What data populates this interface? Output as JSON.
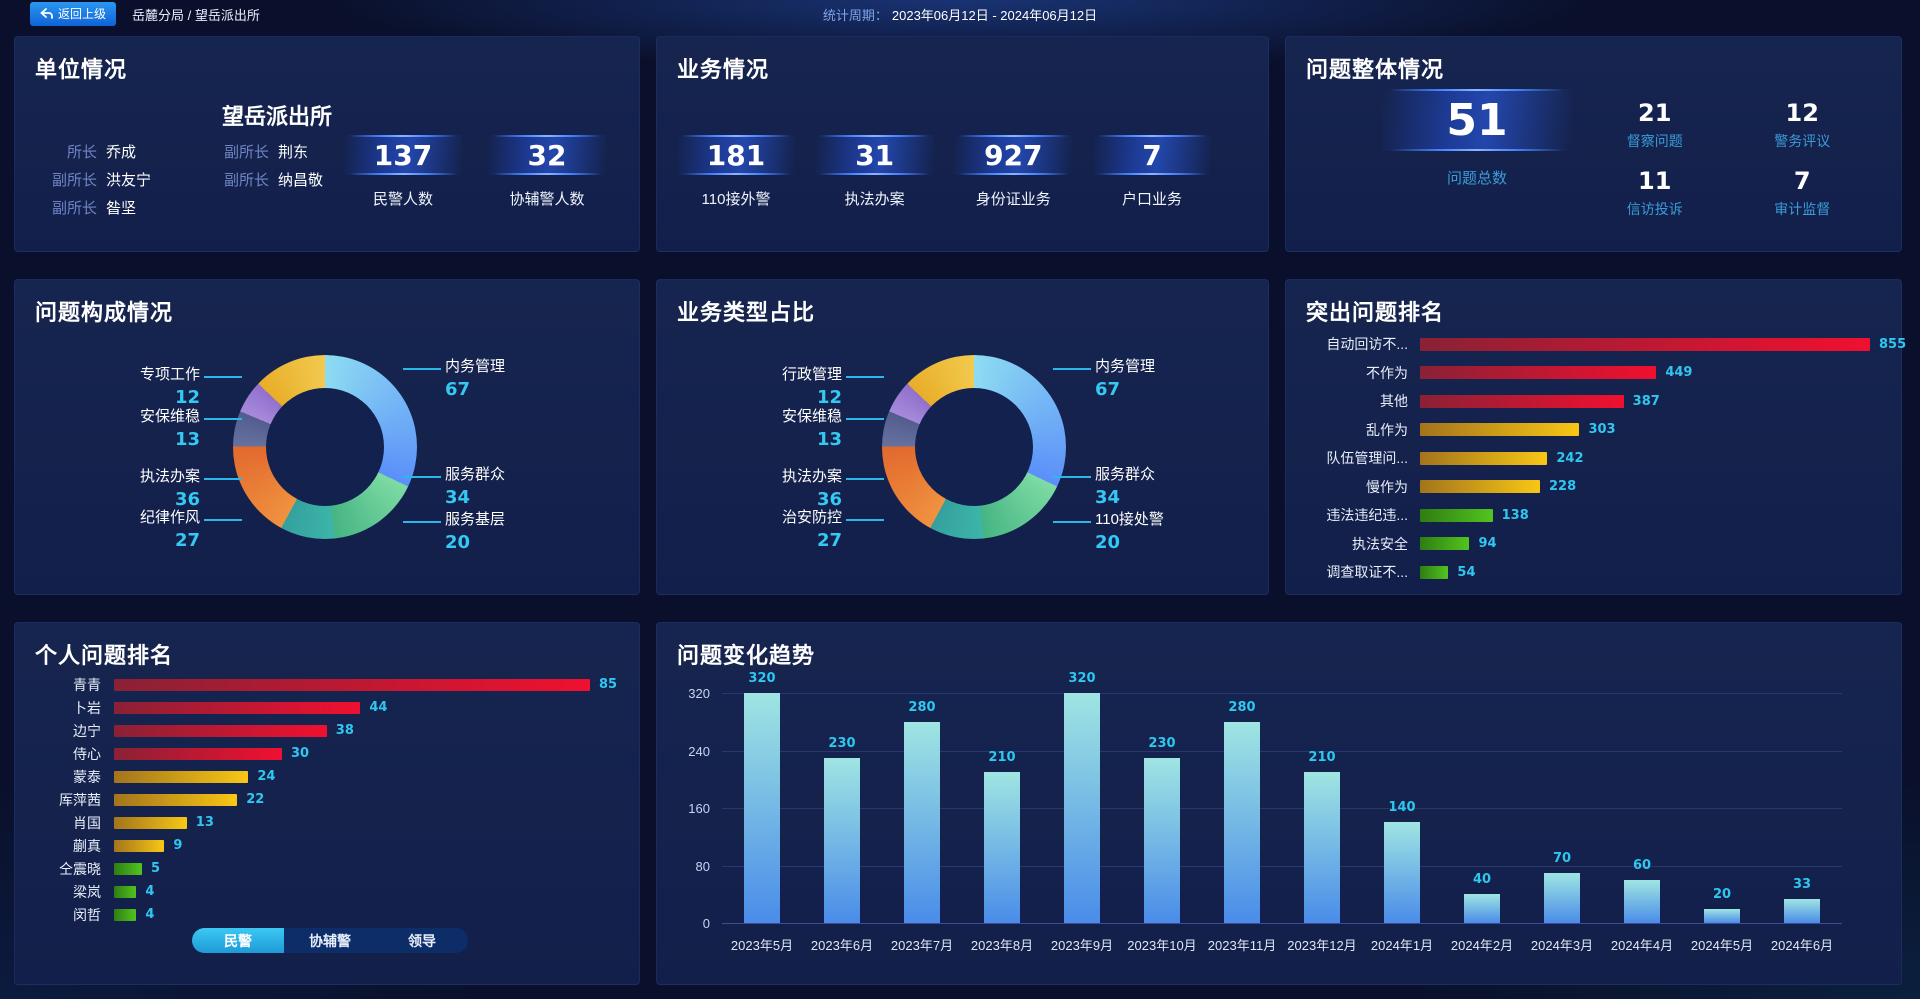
{
  "header": {
    "back_button": "返回上级",
    "breadcrumb": "岳麓分局 / 望岳派出所",
    "period_label": "统计周期：",
    "period_value": "2023年06月12日 - 2024年06月12日"
  },
  "unit_panel": {
    "title": "单位情况",
    "station_name": "望岳派出所",
    "leaders": [
      {
        "role": "所长",
        "name": "乔成"
      },
      {
        "role": "副所长",
        "name": "荆东"
      },
      {
        "role": "副所长",
        "name": "洪友宁"
      },
      {
        "role": "副所长",
        "name": "纳昌敬"
      },
      {
        "role": "副所长",
        "name": "昝坚"
      }
    ],
    "stats": [
      {
        "value": "137",
        "label": "民警人数"
      },
      {
        "value": "32",
        "label": "协辅警人数"
      }
    ]
  },
  "business_panel": {
    "title": "业务情况",
    "stats": [
      {
        "value": "181",
        "label": "110接外警"
      },
      {
        "value": "31",
        "label": "执法办案"
      },
      {
        "value": "927",
        "label": "身份证业务"
      },
      {
        "value": "7",
        "label": "户口业务"
      }
    ]
  },
  "problem_overview_panel": {
    "title": "问题整体情况",
    "total": {
      "value": "51",
      "label": "问题总数"
    },
    "stats": [
      {
        "value": "21",
        "label": "督察问题"
      },
      {
        "value": "12",
        "label": "警务评议"
      },
      {
        "value": "11",
        "label": "信访投诉"
      },
      {
        "value": "7",
        "label": "审计监督"
      }
    ]
  },
  "colors": {
    "accent_cyan": "#29b9ea",
    "value_label_cyan": "#2fc6f0",
    "stat_label_cyan": "#3b9bd8",
    "tier_red": [
      "#8a2135",
      "#f01030"
    ],
    "tier_gold": [
      "#a3741c",
      "#f8c715"
    ],
    "tier_green": [
      "#2f7d12",
      "#52c41f"
    ],
    "trend_bar": [
      "#9fe5e2",
      "#4a8ce8"
    ],
    "donut_palette": [
      [
        "#8ddcf2",
        "#5b8ff9"
      ],
      [
        "#7edba4",
        "#46b583"
      ],
      [
        "#3cb5a8",
        "#35a09e"
      ],
      [
        "#f0923f",
        "#e2692e"
      ],
      [
        "#67719f",
        "#525d8f"
      ],
      [
        "#a78adb",
        "#9170cc"
      ],
      [
        "#e8ae28",
        "#f2c94e"
      ]
    ]
  },
  "chart_data": [
    {
      "id": "problem-composition",
      "type": "pie",
      "donut": true,
      "title": "问题构成情况",
      "series": [
        {
          "name": "内务管理",
          "value": 67
        },
        {
          "name": "服务群众",
          "value": 34
        },
        {
          "name": "服务基层",
          "value": 20
        },
        {
          "name": "执法办案",
          "value": 36
        },
        {
          "name": "安保维稳",
          "value": 13
        },
        {
          "name": "专项工作",
          "value": 12
        },
        {
          "name": "纪律作风",
          "value": 27
        }
      ]
    },
    {
      "id": "business-type-share",
      "type": "pie",
      "donut": true,
      "title": "业务类型占比",
      "series": [
        {
          "name": "内务管理",
          "value": 67
        },
        {
          "name": "服务群众",
          "value": 34
        },
        {
          "name": "110接处警",
          "value": 20
        },
        {
          "name": "执法办案",
          "value": 36
        },
        {
          "name": "安保维稳",
          "value": 13
        },
        {
          "name": "行政管理",
          "value": 12
        },
        {
          "name": "治安防控",
          "value": 27
        }
      ]
    },
    {
      "id": "prominent-problem-ranking",
      "type": "bar",
      "orientation": "horizontal",
      "title": "突出问题排名",
      "categories": [
        "自动回访不...",
        "不作为",
        "其他",
        "乱作为",
        "队伍管理问...",
        "慢作为",
        "违法违纪违...",
        "执法安全",
        "调查取证不..."
      ],
      "values": [
        855,
        449,
        387,
        303,
        242,
        228,
        138,
        94,
        54
      ],
      "tiers": [
        "red",
        "red",
        "red",
        "gold",
        "gold",
        "gold",
        "green",
        "green",
        "green"
      ],
      "xlim": [
        0,
        900
      ]
    },
    {
      "id": "personal-problem-ranking",
      "type": "bar",
      "orientation": "horizontal",
      "title": "个人问题排名",
      "categories": [
        "青青",
        "卜岩",
        "边宁",
        "侍心",
        "蒙泰",
        "厍萍茜",
        "肖国",
        "蒯真",
        "仝震晓",
        "梁岚",
        "闵哲"
      ],
      "values": [
        85,
        44,
        38,
        30,
        24,
        22,
        13,
        9,
        5,
        4,
        4
      ],
      "tiers": [
        "red",
        "red",
        "red",
        "red",
        "gold",
        "gold",
        "gold",
        "gold",
        "green",
        "green",
        "green"
      ],
      "xlim": [
        0,
        100
      ],
      "tabs": {
        "options": [
          "民警",
          "协辅警",
          "领导"
        ],
        "active": "民警"
      }
    },
    {
      "id": "problem-trend",
      "type": "bar",
      "title": "问题变化趋势",
      "categories": [
        "2023年5月",
        "2023年6月",
        "2023年7月",
        "2023年8月",
        "2023年9月",
        "2023年10月",
        "2023年11月",
        "2023年12月",
        "2024年1月",
        "2024年2月",
        "2024年3月",
        "2024年4月",
        "2024年5月",
        "2024年6月"
      ],
      "values": [
        320,
        230,
        280,
        210,
        320,
        230,
        280,
        210,
        140,
        40,
        70,
        60,
        20,
        33
      ],
      "yticks": [
        0,
        80,
        160,
        240,
        320
      ],
      "ylim": [
        0,
        320
      ],
      "grid": true
    }
  ]
}
